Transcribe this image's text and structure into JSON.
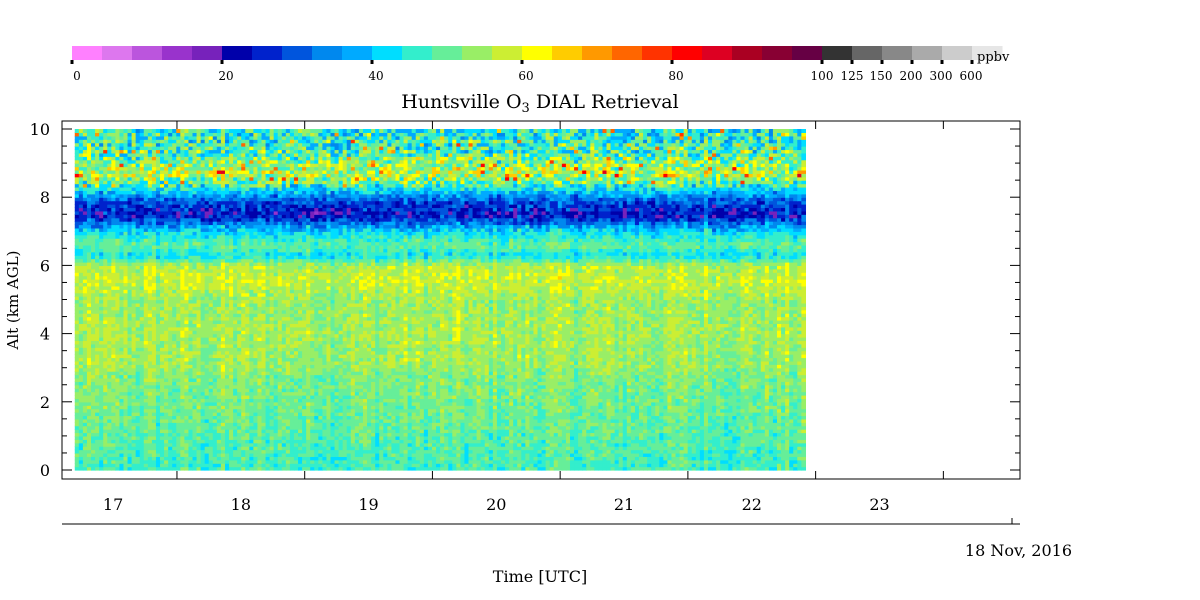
{
  "chart_data": {
    "type": "heatmap",
    "title": "Huntsville O",
    "title_subscript": "3",
    "title_suffix": " DIAL Retrieval",
    "ylabel": "Alt (km AGL)",
    "xlabel": "Time [UTC]",
    "date_label": "18 Nov, 2016",
    "ylim": [
      0,
      10
    ],
    "xlim": [
      16.6,
      24.1
    ],
    "data_xrange": [
      16.7,
      22.42
    ],
    "y_ticks": [
      "0",
      "2",
      "4",
      "6",
      "8",
      "10"
    ],
    "x_ticks": [
      "17",
      "18",
      "19",
      "20",
      "21",
      "22",
      "23"
    ],
    "colorbar": {
      "unit": "ppbv",
      "tick_labels": [
        "0",
        "20",
        "40",
        "60",
        "80",
        "100",
        "125",
        "150",
        "200",
        "300",
        "600"
      ],
      "colors": [
        "#ff80ff",
        "#dd77ee",
        "#bb55dd",
        "#9933cc",
        "#7722bb",
        "#0000aa",
        "#0022cc",
        "#0055dd",
        "#0088ee",
        "#00aaff",
        "#00ddff",
        "#33eecc",
        "#66ee99",
        "#99ee66",
        "#ccee33",
        "#ffff00",
        "#ffcc00",
        "#ff9900",
        "#ff6600",
        "#ff3300",
        "#ff0000",
        "#dd0022",
        "#aa0022",
        "#880033",
        "#660044",
        "#333333",
        "#666666",
        "#888888",
        "#aaaaaa",
        "#cccccc",
        "#e6e6e6"
      ]
    },
    "ozone_profile_ppbv": [
      {
        "alt": 0.0,
        "value": 47
      },
      {
        "alt": 1.0,
        "value": 49
      },
      {
        "alt": 2.0,
        "value": 51
      },
      {
        "alt": 2.8,
        "value": 52
      },
      {
        "alt": 3.0,
        "value": 54
      },
      {
        "alt": 4.0,
        "value": 55
      },
      {
        "alt": 5.0,
        "value": 54
      },
      {
        "alt": 5.5,
        "value": 58
      },
      {
        "alt": 6.0,
        "value": 56
      },
      {
        "alt": 6.3,
        "value": 43
      },
      {
        "alt": 6.6,
        "value": 50
      },
      {
        "alt": 7.0,
        "value": 42
      },
      {
        "alt": 7.5,
        "value": 23
      },
      {
        "alt": 7.9,
        "value": 30
      },
      {
        "alt": 8.3,
        "value": 45
      },
      {
        "alt": 8.7,
        "value": 58
      },
      {
        "alt": 9.3,
        "value": 48
      },
      {
        "alt": 10.0,
        "value": 45
      }
    ]
  }
}
